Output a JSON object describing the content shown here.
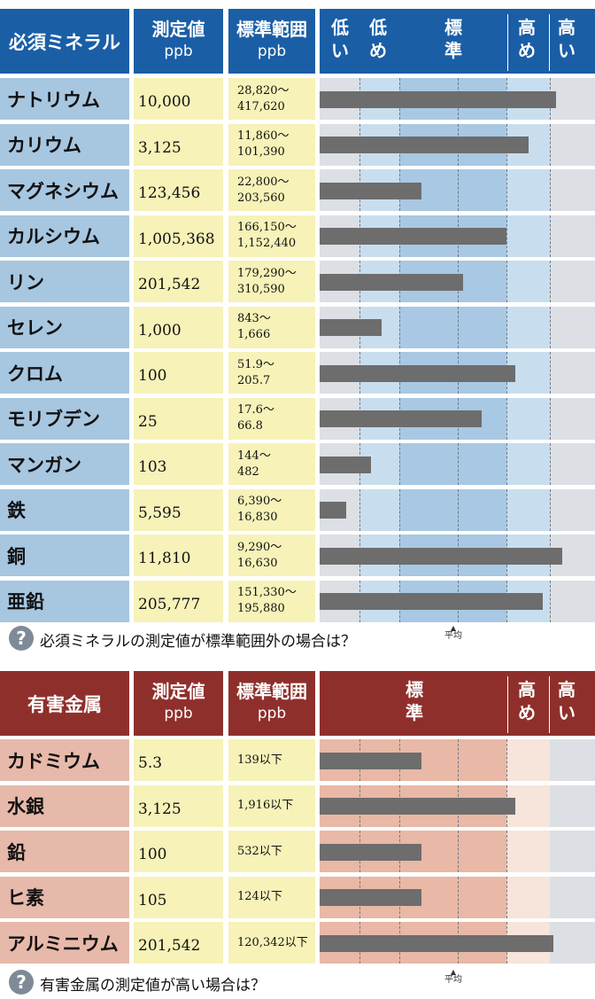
{
  "essential": {
    "headers": {
      "name": "必須ミネラル",
      "value_title": "測定値",
      "value_unit": "ppb",
      "range_title": "標準範囲",
      "range_unit": "ppb"
    },
    "zones": {
      "low": "低い",
      "lowish": "低め",
      "standard": "標準",
      "highish": "高め",
      "high": "高い"
    },
    "footer_question": "必須ミネラルの測定値が標準範囲外の場合は？",
    "avg_label": "平均"
  },
  "toxic": {
    "headers": {
      "name": "有害金属",
      "value_title": "測定値",
      "value_unit": "ppb",
      "range_title": "標準範囲",
      "range_unit": "ppb"
    },
    "zones": {
      "standard": "標準",
      "highish": "高め",
      "high": "高い"
    },
    "footer_question": "有害金属の測定値が高い場合は？",
    "avg_label": "平均"
  },
  "colors": {
    "blue_header": "#1a5ea6",
    "blue_name": "#a7c6e0",
    "red_header": "#8f2f2c",
    "red_name": "#e7b9aa",
    "value_bg": "#f6f2b8",
    "bar": "#6d6d6d",
    "blue_zone_edge": "#dcdfe4",
    "blue_zone_mid": "#c8deee",
    "blue_zone_std": "#a9c8e3",
    "red_zone_std": "#e9b8a6",
    "red_zone_highish": "#f7e4da",
    "red_zone_high": "#dcdfe4"
  },
  "icons": {
    "question": "question-circle-icon",
    "avg_marker": "triangle-up-icon"
  },
  "question_glyph": "?",
  "chart_data": [
    {
      "type": "bar",
      "orientation": "horizontal",
      "title": "",
      "xlabel": "",
      "ylabel": "",
      "xlim": [
        0,
        100
      ],
      "grid": true,
      "zone_boundaries_percent": [
        14.5,
        29,
        50,
        68,
        83.5
      ],
      "rows": [
        {
          "name": "ナトリウム",
          "value": "10,000",
          "range_low": "28,820～",
          "range_high": "417,620",
          "bar_percent": 86
        },
        {
          "name": "カリウム",
          "value": "3,125",
          "range_low": "11,860～",
          "range_high": "101,390",
          "bar_percent": 76
        },
        {
          "name": "マグネシウム",
          "value": "123,456",
          "range_low": "22,800～",
          "range_high": "203,560",
          "bar_percent": 37
        },
        {
          "name": "カルシウム",
          "value": "1,005,368",
          "range_low": "166,150～",
          "range_high": "1,152,440",
          "bar_percent": 68
        },
        {
          "name": "リン",
          "value": "201,542",
          "range_low": "179,290～",
          "range_high": "310,590",
          "bar_percent": 52
        },
        {
          "name": "セレン",
          "value": "1,000",
          "range_low": "843～",
          "range_high": "1,666",
          "bar_percent": 22.5
        },
        {
          "name": "クロム",
          "value": "100",
          "range_low": "51.9～",
          "range_high": "205.7",
          "bar_percent": 71
        },
        {
          "name": "モリブデン",
          "value": "25",
          "range_low": "17.6～",
          "range_high": "66.8",
          "bar_percent": 59
        },
        {
          "name": "マンガン",
          "value": "103",
          "range_low": "144～",
          "range_high": "482",
          "bar_percent": 18.5
        },
        {
          "name": "鉄",
          "value": "5,595",
          "range_low": "6,390～",
          "range_high": "16,830",
          "bar_percent": 9.5
        },
        {
          "name": "銅",
          "value": "11,810",
          "range_low": "9,290～",
          "range_high": "16,630",
          "bar_percent": 88
        },
        {
          "name": "亜鉛",
          "value": "205,777",
          "range_low": "151,330～",
          "range_high": "195,880",
          "bar_percent": 81
        }
      ]
    },
    {
      "type": "bar",
      "orientation": "horizontal",
      "title": "",
      "xlabel": "",
      "ylabel": "",
      "xlim": [
        0,
        100
      ],
      "grid": true,
      "zone_boundaries_percent": [
        68,
        83.5
      ],
      "grid_percent": [
        14.5,
        29,
        50
      ],
      "rows": [
        {
          "name": "カドミウム",
          "value": "5.3",
          "range_low": "139以下",
          "range_high": "",
          "bar_percent": 37
        },
        {
          "name": "水銀",
          "value": "3,125",
          "range_low": "1,916以下",
          "range_high": "",
          "bar_percent": 71
        },
        {
          "name": "鉛",
          "value": "100",
          "range_low": "532以下",
          "range_high": "",
          "bar_percent": 37
        },
        {
          "name": "ヒ素",
          "value": "105",
          "range_low": "124以下",
          "range_high": "",
          "bar_percent": 37
        },
        {
          "name": "アルミニウム",
          "value": "201,542",
          "range_low": "120,342以下",
          "range_high": "",
          "bar_percent": 85
        }
      ]
    }
  ]
}
